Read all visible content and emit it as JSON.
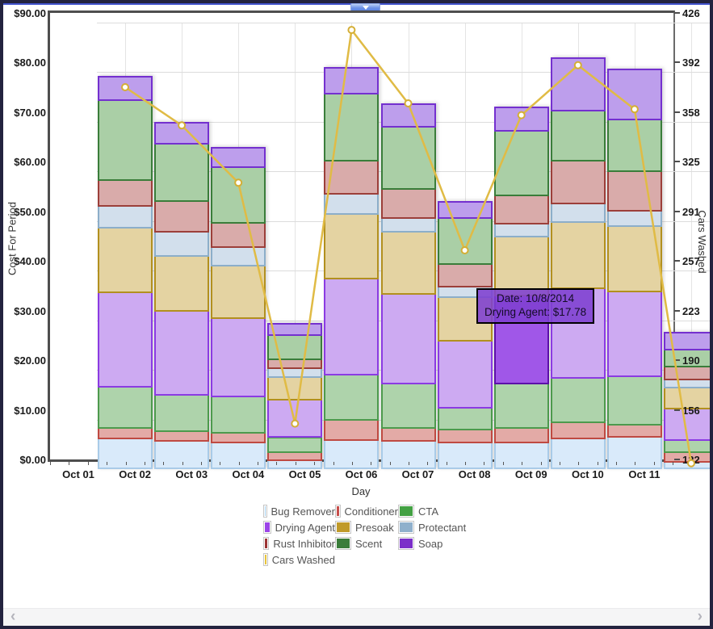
{
  "window": {
    "scrollbar": {
      "left_glyph": "‹",
      "right_glyph": "›"
    },
    "accent_color": "#4254ce"
  },
  "chart_data": {
    "type": "bar",
    "subtype": "stacked-bar-with-line",
    "title": "",
    "xlabel": "Day",
    "ylabel_left": "Cost For Period",
    "ylabel_right": "Cars Washed",
    "categories": [
      "Oct 01",
      "Oct 02",
      "Oct 03",
      "Oct 04",
      "Oct 05",
      "Oct 06",
      "Oct 07",
      "Oct 08",
      "Oct 09",
      "Oct 10",
      "Oct 11"
    ],
    "y_left": {
      "min": 0,
      "max": 90,
      "tick_labels": [
        "$0.00",
        "$10.00",
        "$20.00",
        "$30.00",
        "$40.00",
        "$50.00",
        "$60.00",
        "$70.00",
        "$80.00",
        "$90.00"
      ]
    },
    "y_right": {
      "min": 122,
      "max": 426,
      "tick_labels": [
        "122",
        "156",
        "190",
        "223",
        "257",
        "291",
        "325",
        "358",
        "392",
        "426"
      ]
    },
    "grid": true,
    "legend_position": "bottom",
    "series": [
      {
        "name": "Bug Remover",
        "fill": "#d9eafa",
        "border": "#a9cbe8",
        "legend": "#aad4f2",
        "values": [
          6.4,
          5.8,
          5.5,
          2.0,
          6.1,
          5.8,
          5.5,
          5.5,
          6.3,
          6.6,
          1.6
        ]
      },
      {
        "name": "Conditioner",
        "fill": "#e3aaa6",
        "border": "#bf4a42",
        "legend": "#c74e4b",
        "values": [
          2.1,
          2.0,
          2.0,
          1.6,
          4.0,
          2.7,
          2.6,
          2.9,
          3.3,
          2.5,
          2.0
        ]
      },
      {
        "name": "CTA",
        "fill": "#aed3ab",
        "border": "#4d9a4d",
        "legend": "#43a143",
        "values": [
          8.3,
          7.4,
          7.3,
          3.0,
          9.1,
          9.0,
          4.5,
          9.0,
          8.9,
          9.8,
          2.5
        ]
      },
      {
        "name": "Drying Agent",
        "fill": "#cdaaf2",
        "border": "#8b3be2",
        "legend": "#9b44e8",
        "values": [
          19.0,
          16.8,
          15.8,
          7.5,
          19.4,
          18.0,
          13.4,
          17.78,
          18.1,
          17.0,
          6.2
        ]
      },
      {
        "name": "Presoak",
        "fill": "#e4d3a2",
        "border": "#b2901f",
        "legend": "#c09a2a",
        "values": [
          13.0,
          11.2,
          10.6,
          4.7,
          13.0,
          12.5,
          8.8,
          11.9,
          13.3,
          13.3,
          4.3
        ]
      },
      {
        "name": "Protectant",
        "fill": "#d2dfec",
        "border": "#8caec9",
        "legend": "#8fb0cc",
        "values": [
          4.5,
          4.9,
          3.7,
          1.7,
          4.1,
          2.8,
          2.2,
          2.6,
          3.8,
          3.0,
          1.7
        ]
      },
      {
        "name": "Rust Inhibitor",
        "fill": "#d9abaa",
        "border": "#9c3f3a",
        "legend": "#9c3535",
        "values": [
          5.2,
          6.1,
          4.9,
          1.8,
          6.7,
          5.8,
          4.5,
          5.7,
          8.7,
          8.0,
          2.6
        ]
      },
      {
        "name": "Scent",
        "fill": "#aacfa6",
        "border": "#3a7d3a",
        "legend": "#3a7d3a",
        "values": [
          16.0,
          11.6,
          11.2,
          4.9,
          13.4,
          12.6,
          9.3,
          13.0,
          10.1,
          10.4,
          3.3
        ]
      },
      {
        "name": "Soap",
        "fill": "#bd9eec",
        "border": "#7430cf",
        "legend": "#7b2fc9",
        "values": [
          4.8,
          4.2,
          3.9,
          2.3,
          5.2,
          4.5,
          3.3,
          4.7,
          10.5,
          10.2,
          3.4
        ]
      }
    ],
    "line_series": {
      "name": "Cars Washed",
      "color": "#e0bb45",
      "marker_fill": "#fffef8",
      "marker_stroke": "#d4ae35",
      "legend": "#e6c33c",
      "values": [
        382,
        356,
        317,
        153,
        421,
        371,
        271,
        363,
        397,
        367,
        126
      ]
    },
    "highlight": {
      "category_index": 7,
      "series_index": 3,
      "fill": "#a057e8",
      "border": "#5c10a8"
    },
    "tooltip": {
      "line1": "Date: 10/8/2014",
      "line2": "Drying Agent: $17.78",
      "bg_color": "rgba(126,64,208,0.88)",
      "border_color": "#000000",
      "text_color": "#140c26"
    }
  },
  "legend": {
    "items": [
      {
        "label": "Bug Remover",
        "color": "#aad4f2"
      },
      {
        "label": "Conditioner",
        "color": "#c74e4b"
      },
      {
        "label": "CTA",
        "color": "#43a143"
      },
      {
        "label": "Drying Agent",
        "color": "#9b44e8"
      },
      {
        "label": "Presoak",
        "color": "#c09a2a"
      },
      {
        "label": "Protectant",
        "color": "#8fb0cc"
      },
      {
        "label": "Rust Inhibitor",
        "color": "#9c3535"
      },
      {
        "label": "Scent",
        "color": "#3a7d3a"
      },
      {
        "label": "Soap",
        "color": "#7b2fc9"
      },
      {
        "label": "Cars Washed",
        "color": "#e6c33c"
      }
    ]
  }
}
